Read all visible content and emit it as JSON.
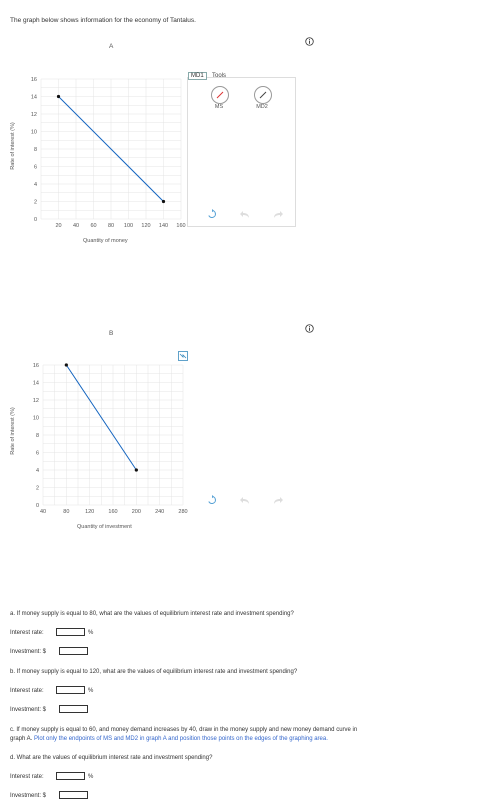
{
  "intro": "The graph below shows information for the economy of Tantalus.",
  "graphA": {
    "title": "A",
    "ylabel": "Rate of interest (%)",
    "xlabel": "Quantity of money",
    "yticks": [
      "16",
      "14",
      "12",
      "10",
      "8",
      "6",
      "4",
      "2",
      "0"
    ],
    "xticks": [
      "20",
      "40",
      "60",
      "80",
      "100",
      "120",
      "140",
      "160"
    ],
    "legend_tab": "MD1",
    "tools_label": "Tools",
    "tool_ms": "MS",
    "tool_md2": "MD2"
  },
  "graphB": {
    "title": "B",
    "ylabel": "Rate of interest (%)",
    "xlabel": "Quantity of investment",
    "yticks": [
      "16",
      "14",
      "12",
      "10",
      "8",
      "6",
      "4",
      "2",
      "0"
    ],
    "xticks": [
      "40",
      "80",
      "120",
      "160",
      "200",
      "240",
      "280"
    ]
  },
  "chart_data": [
    {
      "type": "line",
      "title": "A",
      "xlabel": "Quantity of money",
      "ylabel": "Rate of interest (%)",
      "xlim": [
        0,
        160
      ],
      "ylim": [
        0,
        16
      ],
      "series": [
        {
          "name": "MD1",
          "x": [
            20,
            140
          ],
          "y": [
            14,
            2
          ]
        }
      ]
    },
    {
      "type": "line",
      "title": "B",
      "xlabel": "Quantity of investment",
      "ylabel": "Rate of interest (%)",
      "xlim": [
        40,
        280
      ],
      "ylim": [
        0,
        16
      ],
      "series": [
        {
          "x": [
            80,
            200
          ],
          "y": [
            16,
            4
          ]
        }
      ]
    }
  ],
  "questions": {
    "a": "a. If money supply is equal to 80, what are the values of equilibrium interest rate and investment spending?",
    "b": "b. If money supply is equal to 120, what are the values of equilibrium interest rate and investment spending?",
    "c_line1": "c. If money supply is equal to 60, and money demand increases by 40, draw in the money supply and new money demand curve in",
    "c_line2_prefix": "graph A.",
    "c_line2_note": "Plot only the endpoints of  MS and MD2 in graph A and position those points on the edges of the graphing area.",
    "d": "d. What are the values of equilibrium interest rate and investment spending?",
    "interest_label": "Interest rate:",
    "investment_label": "Investment: $",
    "percent": "%"
  },
  "colors": {
    "line": "#1565c0",
    "grid": "#e4e4e4"
  }
}
